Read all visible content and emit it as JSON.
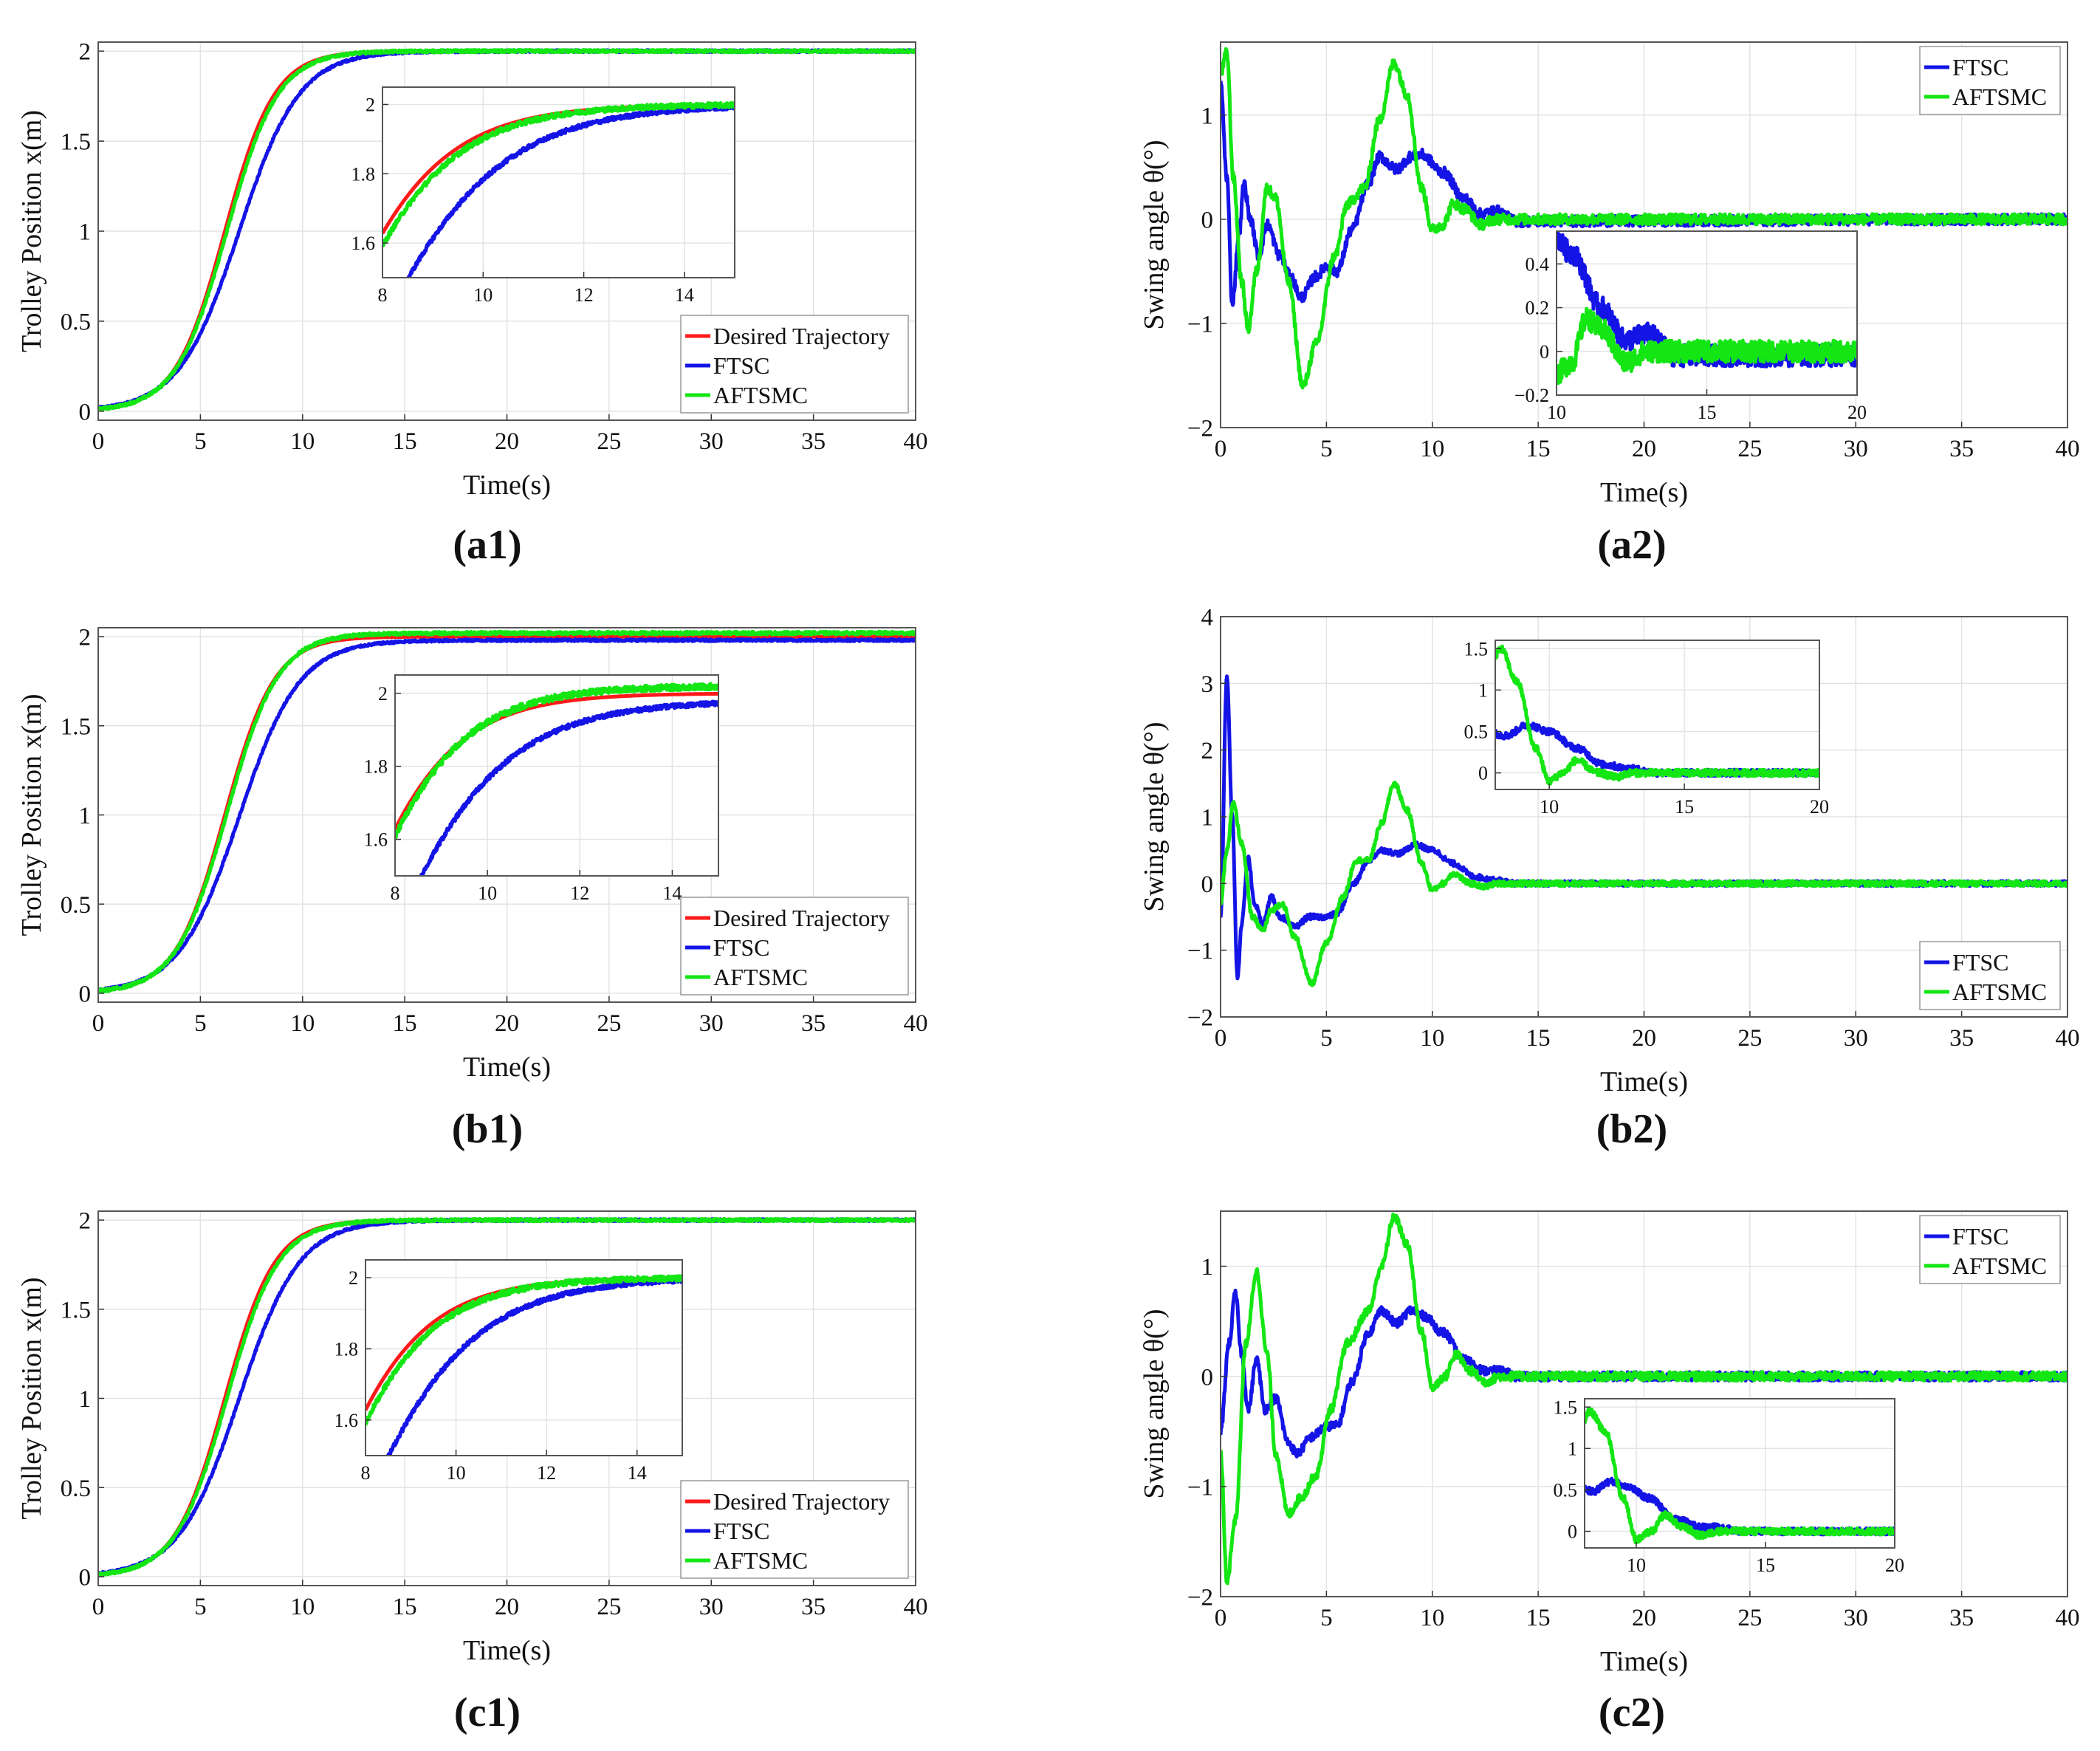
{
  "figure": {
    "background": "#ffffff",
    "series_colors": {
      "Desired Trajectory": "#ff1a1a",
      "FTSC": "#1414e6",
      "AFTSMC": "#14e614"
    }
  },
  "chart_data": [
    {
      "type": "line",
      "panel": "a1",
      "caption": "(a1)",
      "xlabel": "Time(s)",
      "ylabel": "Trolley Position x(m)",
      "xlim": [
        0,
        40
      ],
      "ylim": [
        -0.05,
        2.05
      ],
      "xticks": [
        0,
        5,
        10,
        15,
        20,
        25,
        30,
        35,
        40
      ],
      "yticks": [
        0,
        0.5,
        1,
        1.5,
        2
      ],
      "grid": true,
      "legend": {
        "placement": "bottom-right",
        "entries": [
          "Desired Trajectory",
          "FTSC",
          "AFTSMC"
        ]
      },
      "series": [
        {
          "name": "Desired Trajectory",
          "model": "sigmoid",
          "params": {
            "final": 2.0,
            "t50": 6.2,
            "k": 0.82
          }
        },
        {
          "name": "FTSC",
          "model": "sigmoid",
          "params": {
            "final": 2.0,
            "t50": 6.9,
            "k": 0.68,
            "noise": 0.006
          }
        },
        {
          "name": "AFTSMC",
          "model": "sigmoid",
          "params": {
            "final": 2.0,
            "t50": 6.3,
            "k": 0.8,
            "noise": 0.007
          }
        }
      ],
      "inset": {
        "placement": "upper-middle",
        "xlim": [
          8,
          15
        ],
        "ylim": [
          1.5,
          2.05
        ],
        "xticks": [
          8,
          10,
          12,
          14
        ],
        "yticks": [
          1.6,
          1.8,
          2
        ]
      }
    },
    {
      "type": "line",
      "panel": "a2",
      "caption": "(a2)",
      "xlabel": "Time(s)",
      "ylabel": "Swing angle θ(°)",
      "xlim": [
        0,
        40
      ],
      "ylim": [
        -2,
        1.7
      ],
      "xticks": [
        0,
        5,
        10,
        15,
        20,
        25,
        30,
        35,
        40
      ],
      "yticks": [
        -2,
        -1,
        0,
        1
      ],
      "grid": true,
      "legend": {
        "placement": "top-right",
        "entries": [
          "FTSC",
          "AFTSMC"
        ]
      },
      "series": [
        {
          "name": "FTSC",
          "points": [
            [
              0,
              1.3
            ],
            [
              0.3,
              0.4
            ],
            [
              0.55,
              -0.8
            ],
            [
              0.9,
              -0.1
            ],
            [
              1.1,
              0.35
            ],
            [
              1.4,
              0.0
            ],
            [
              1.8,
              -0.35
            ],
            [
              2.2,
              -0.05
            ],
            [
              2.8,
              -0.35
            ],
            [
              3.3,
              -0.55
            ],
            [
              3.8,
              -0.75
            ],
            [
              4.5,
              -0.55
            ],
            [
              5.0,
              -0.45
            ],
            [
              5.5,
              -0.5
            ],
            [
              6.2,
              -0.1
            ],
            [
              7.0,
              0.35
            ],
            [
              7.5,
              0.6
            ],
            [
              8.3,
              0.48
            ],
            [
              9.0,
              0.6
            ],
            [
              9.5,
              0.62
            ],
            [
              10.5,
              0.45
            ],
            [
              11.5,
              0.2
            ],
            [
              12.3,
              0.05
            ],
            [
              13.0,
              0.08
            ],
            [
              14,
              -0.02
            ],
            [
              40,
              0
            ]
          ],
          "noise": 0.05
        },
        {
          "name": "AFTSMC",
          "points": [
            [
              0,
              1.4
            ],
            [
              0.3,
              1.6
            ],
            [
              0.6,
              0.4
            ],
            [
              1.0,
              -0.6
            ],
            [
              1.3,
              -1.05
            ],
            [
              1.7,
              -0.5
            ],
            [
              2.2,
              0.3
            ],
            [
              2.6,
              0.2
            ],
            [
              3.2,
              -0.6
            ],
            [
              3.9,
              -1.6
            ],
            [
              4.5,
              -1.2
            ],
            [
              5.4,
              -0.35
            ],
            [
              6.0,
              0.15
            ],
            [
              6.8,
              0.3
            ],
            [
              7.5,
              0.95
            ],
            [
              8.2,
              1.5
            ],
            [
              8.8,
              1.2
            ],
            [
              9.5,
              0.3
            ],
            [
              10.0,
              -0.1
            ],
            [
              10.5,
              -0.05
            ],
            [
              11.0,
              0.15
            ],
            [
              11.5,
              0.1
            ],
            [
              12.3,
              -0.05
            ],
            [
              13.0,
              0.0
            ],
            [
              40,
              0
            ]
          ],
          "noise": 0.05
        }
      ],
      "inset": {
        "placement": "lower-middle",
        "xlim": [
          10,
          20
        ],
        "ylim": [
          -0.2,
          0.55
        ],
        "xticks": [
          10,
          15,
          20
        ],
        "yticks": [
          -0.2,
          0,
          0.2,
          0.4
        ]
      }
    },
    {
      "type": "line",
      "panel": "b1",
      "caption": "(b1)",
      "xlabel": "Time(s)",
      "ylabel": "Trolley Position x(m)",
      "xlim": [
        0,
        40
      ],
      "ylim": [
        -0.05,
        2.05
      ],
      "xticks": [
        0,
        5,
        10,
        15,
        20,
        25,
        30,
        35,
        40
      ],
      "yticks": [
        0,
        0.5,
        1,
        1.5,
        2
      ],
      "grid": true,
      "legend": {
        "placement": "bottom-right",
        "entries": [
          "Desired Trajectory",
          "FTSC",
          "AFTSMC"
        ]
      },
      "series": [
        {
          "name": "Desired Trajectory",
          "model": "sigmoid",
          "params": {
            "final": 2.0,
            "t50": 6.2,
            "k": 0.82
          }
        },
        {
          "name": "FTSC",
          "model": "sigmoid",
          "params": {
            "final": 1.98,
            "t50": 6.9,
            "k": 0.68,
            "noise": 0.006
          }
        },
        {
          "name": "AFTSMC",
          "model": "sigmoid",
          "params": {
            "final": 2.02,
            "t50": 6.3,
            "k": 0.8,
            "noise": 0.008
          }
        }
      ],
      "inset": {
        "placement": "upper-middle",
        "xlim": [
          8,
          15
        ],
        "ylim": [
          1.5,
          2.05
        ],
        "xticks": [
          8,
          10,
          12,
          14
        ],
        "yticks": [
          1.6,
          1.8,
          2
        ]
      }
    },
    {
      "type": "line",
      "panel": "b2",
      "caption": "(b2)",
      "xlabel": "Time(s)",
      "ylabel": "Swing angle θ(°)",
      "xlim": [
        0,
        40
      ],
      "ylim": [
        -2,
        4
      ],
      "xticks": [
        0,
        5,
        10,
        15,
        20,
        25,
        30,
        35,
        40
      ],
      "yticks": [
        -2,
        -1,
        0,
        1,
        2,
        3,
        4
      ],
      "grid": true,
      "legend": {
        "placement": "bottom-right",
        "entries": [
          "FTSC",
          "AFTSMC"
        ]
      },
      "series": [
        {
          "name": "FTSC",
          "points": [
            [
              0,
              -0.5
            ],
            [
              0.3,
              3.1
            ],
            [
              0.55,
              1.0
            ],
            [
              0.8,
              -1.4
            ],
            [
              1.0,
              -0.6
            ],
            [
              1.3,
              0.4
            ],
            [
              1.6,
              -0.3
            ],
            [
              2.0,
              -0.6
            ],
            [
              2.4,
              -0.2
            ],
            [
              2.8,
              -0.5
            ],
            [
              3.5,
              -0.65
            ],
            [
              4.2,
              -0.5
            ],
            [
              5.0,
              -0.5
            ],
            [
              5.5,
              -0.45
            ],
            [
              6.3,
              0.0
            ],
            [
              7.0,
              0.35
            ],
            [
              7.6,
              0.5
            ],
            [
              8.4,
              0.45
            ],
            [
              9.2,
              0.58
            ],
            [
              10.0,
              0.5
            ],
            [
              11.0,
              0.3
            ],
            [
              12.0,
              0.1
            ],
            [
              13.0,
              0.05
            ],
            [
              14.0,
              0.0
            ],
            [
              40,
              0
            ]
          ],
          "noise": 0.04
        },
        {
          "name": "AFTSMC",
          "points": [
            [
              0,
              -0.3
            ],
            [
              0.3,
              0.5
            ],
            [
              0.6,
              1.2
            ],
            [
              1.0,
              0.6
            ],
            [
              1.5,
              -0.5
            ],
            [
              2.0,
              -0.7
            ],
            [
              2.4,
              -0.4
            ],
            [
              2.9,
              -0.3
            ],
            [
              3.5,
              -0.8
            ],
            [
              4.3,
              -1.5
            ],
            [
              5.0,
              -0.9
            ],
            [
              5.8,
              -0.2
            ],
            [
              6.4,
              0.35
            ],
            [
              7.0,
              0.35
            ],
            [
              7.6,
              0.9
            ],
            [
              8.2,
              1.5
            ],
            [
              8.8,
              1.1
            ],
            [
              9.5,
              0.3
            ],
            [
              10.0,
              -0.1
            ],
            [
              10.5,
              0.0
            ],
            [
              11.0,
              0.15
            ],
            [
              11.8,
              0.0
            ],
            [
              12.5,
              -0.05
            ],
            [
              13.0,
              0.0
            ],
            [
              40,
              0
            ]
          ],
          "noise": 0.04
        }
      ],
      "inset": {
        "placement": "upper-middle",
        "xlim": [
          8,
          20
        ],
        "ylim": [
          -0.2,
          1.6
        ],
        "xticks": [
          10,
          15,
          20
        ],
        "yticks": [
          0,
          0.5,
          1,
          1.5
        ]
      }
    },
    {
      "type": "line",
      "panel": "c1",
      "caption": "(c1)",
      "xlabel": "Time(s)",
      "ylabel": "Trolley Position x(m)",
      "xlim": [
        0,
        40
      ],
      "ylim": [
        -0.05,
        2.05
      ],
      "xticks": [
        0,
        5,
        10,
        15,
        20,
        25,
        30,
        35,
        40
      ],
      "yticks": [
        0,
        0.5,
        1,
        1.5,
        2
      ],
      "grid": true,
      "legend": {
        "placement": "bottom-right",
        "entries": [
          "Desired Trajectory",
          "FTSC",
          "AFTSMC"
        ]
      },
      "series": [
        {
          "name": "Desired Trajectory",
          "model": "sigmoid",
          "params": {
            "final": 2.0,
            "t50": 6.2,
            "k": 0.82
          }
        },
        {
          "name": "FTSC",
          "model": "sigmoid",
          "params": {
            "final": 2.0,
            "t50": 6.9,
            "k": 0.68,
            "noise": 0.006
          }
        },
        {
          "name": "AFTSMC",
          "model": "sigmoid",
          "params": {
            "final": 2.0,
            "t50": 6.3,
            "k": 0.8,
            "noise": 0.007
          }
        }
      ],
      "inset": {
        "placement": "upper-middle",
        "xlim": [
          8,
          15
        ],
        "ylim": [
          1.5,
          2.05
        ],
        "xticks": [
          8,
          10,
          12,
          14
        ],
        "yticks": [
          1.6,
          1.8,
          2
        ]
      }
    },
    {
      "type": "line",
      "panel": "c2",
      "caption": "(c2)",
      "xlabel": "Time(s)",
      "ylabel": "Swing angle θ(°)",
      "xlim": [
        0,
        40
      ],
      "ylim": [
        -2,
        1.5
      ],
      "xticks": [
        0,
        5,
        10,
        15,
        20,
        25,
        30,
        35,
        40
      ],
      "yticks": [
        -2,
        -1,
        0,
        1
      ],
      "grid": true,
      "legend": {
        "placement": "top-right",
        "entries": [
          "FTSC",
          "AFTSMC"
        ]
      },
      "series": [
        {
          "name": "FTSC",
          "points": [
            [
              0,
              -0.5
            ],
            [
              0.4,
              0.3
            ],
            [
              0.7,
              0.75
            ],
            [
              1.0,
              0.2
            ],
            [
              1.3,
              -0.3
            ],
            [
              1.7,
              0.15
            ],
            [
              2.1,
              -0.3
            ],
            [
              2.6,
              -0.2
            ],
            [
              3.2,
              -0.6
            ],
            [
              3.6,
              -0.7
            ],
            [
              4.3,
              -0.55
            ],
            [
              5.0,
              -0.45
            ],
            [
              5.5,
              -0.45
            ],
            [
              6.2,
              -0.05
            ],
            [
              7.0,
              0.4
            ],
            [
              7.6,
              0.6
            ],
            [
              8.3,
              0.48
            ],
            [
              9.0,
              0.6
            ],
            [
              9.6,
              0.55
            ],
            [
              10.5,
              0.4
            ],
            [
              11.5,
              0.15
            ],
            [
              12.5,
              0.05
            ],
            [
              13.2,
              0.05
            ],
            [
              14.0,
              0.0
            ],
            [
              40,
              0
            ]
          ],
          "noise": 0.04
        },
        {
          "name": "AFTSMC",
          "points": [
            [
              0,
              -0.7
            ],
            [
              0.3,
              -1.85
            ],
            [
              0.7,
              -1.3
            ],
            [
              1.2,
              0.3
            ],
            [
              1.7,
              0.95
            ],
            [
              2.2,
              0.2
            ],
            [
              2.6,
              -0.7
            ],
            [
              3.2,
              -1.25
            ],
            [
              3.8,
              -1.1
            ],
            [
              4.5,
              -0.9
            ],
            [
              5.2,
              -0.3
            ],
            [
              6.0,
              0.3
            ],
            [
              7.0,
              0.6
            ],
            [
              7.6,
              1.0
            ],
            [
              8.2,
              1.45
            ],
            [
              8.8,
              1.2
            ],
            [
              9.5,
              0.4
            ],
            [
              10.0,
              -0.1
            ],
            [
              10.6,
              0.0
            ],
            [
              11.1,
              0.2
            ],
            [
              11.8,
              0.05
            ],
            [
              12.5,
              -0.05
            ],
            [
              13.2,
              0.0
            ],
            [
              40,
              0
            ]
          ],
          "noise": 0.04
        }
      ],
      "inset": {
        "placement": "lower-middle",
        "xlim": [
          8,
          20
        ],
        "ylim": [
          -0.2,
          1.6
        ],
        "xticks": [
          10,
          15,
          20
        ],
        "yticks": [
          0,
          0.5,
          1,
          1.5
        ]
      }
    }
  ]
}
